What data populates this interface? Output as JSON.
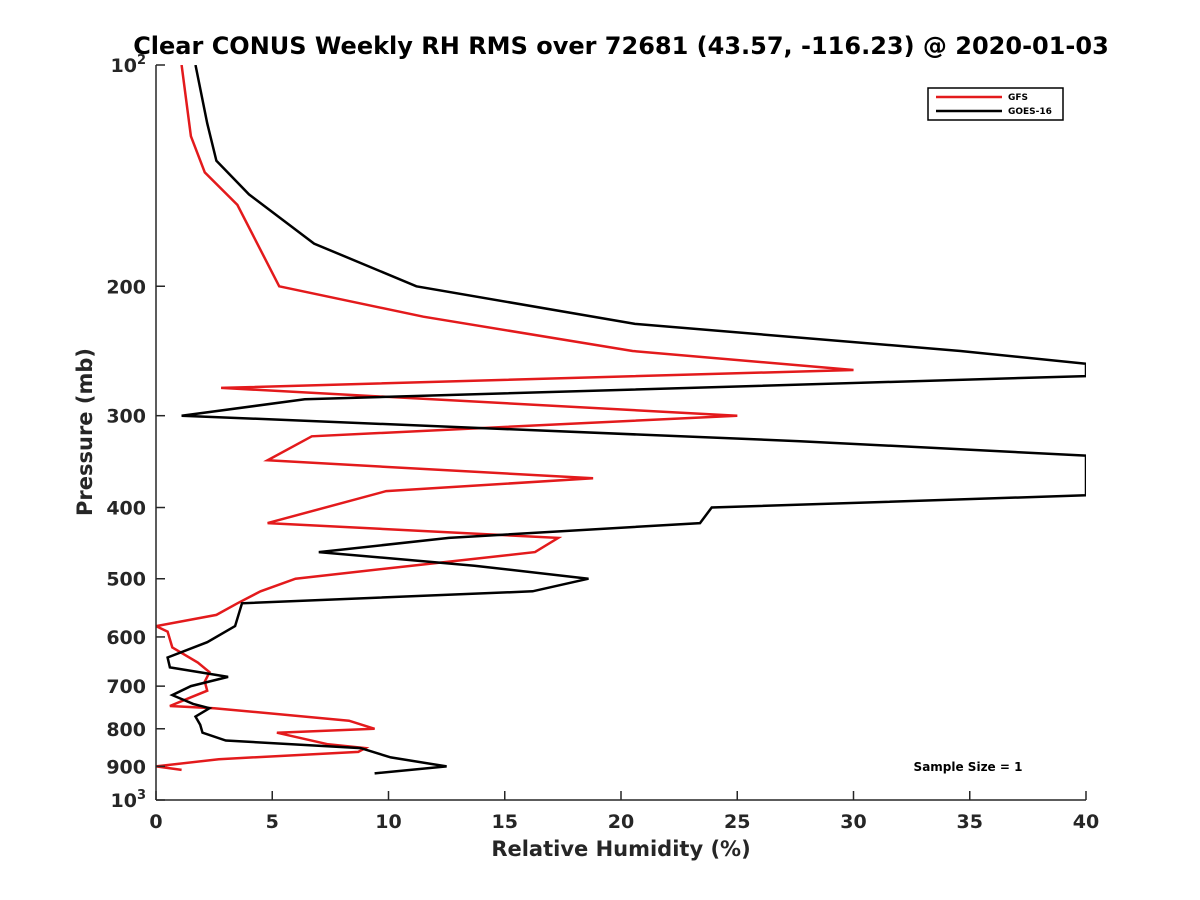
{
  "chart_data": {
    "type": "line",
    "title": "Clear CONUS Weekly RH RMS over 72681 (43.57, -116.23) @ 2020-01-03",
    "xlabel": "Relative Humidity (%)",
    "ylabel": "Pressure (mb)",
    "xlim": [
      0,
      40
    ],
    "ylim": [
      100,
      1000
    ],
    "yscale": "log",
    "y_reversed": true,
    "grid": false,
    "legend_position": "top-right",
    "x_ticks": [
      "0",
      "5",
      "10",
      "15",
      "20",
      "25",
      "30",
      "35",
      "40"
    ],
    "y_ticks": [
      {
        "value": 100,
        "base": "10",
        "exp": "2"
      },
      {
        "value": 200,
        "label": "200"
      },
      {
        "value": 300,
        "label": "300"
      },
      {
        "value": 400,
        "label": "400"
      },
      {
        "value": 500,
        "label": "500"
      },
      {
        "value": 600,
        "label": "600"
      },
      {
        "value": 700,
        "label": "700"
      },
      {
        "value": 800,
        "label": "800"
      },
      {
        "value": 900,
        "label": "900"
      },
      {
        "value": 1000,
        "base": "10",
        "exp": "3"
      }
    ],
    "annotation": "Sample Size = 1",
    "series": [
      {
        "name": "GFS",
        "color": "#e31a1c",
        "points": [
          [
            1.1,
            100
          ],
          [
            1.5,
            125
          ],
          [
            2.1,
            140
          ],
          [
            3.5,
            155
          ],
          [
            5.3,
            200
          ],
          [
            11.5,
            220
          ],
          [
            20.5,
            245
          ],
          [
            30.0,
            260
          ],
          [
            2.8,
            275
          ],
          [
            25.0,
            300
          ],
          [
            6.7,
            320
          ],
          [
            4.8,
            345
          ],
          [
            18.8,
            365
          ],
          [
            9.9,
            380
          ],
          [
            4.8,
            420
          ],
          [
            17.3,
            440
          ],
          [
            16.3,
            460
          ],
          [
            11.0,
            480
          ],
          [
            6.0,
            500
          ],
          [
            4.5,
            520
          ],
          [
            3.5,
            540
          ],
          [
            2.6,
            560
          ],
          [
            0.0,
            580
          ],
          [
            0.5,
            590
          ],
          [
            0.7,
            620
          ],
          [
            1.8,
            650
          ],
          [
            2.3,
            670
          ],
          [
            2.1,
            690
          ],
          [
            2.2,
            710
          ],
          [
            1.5,
            725
          ],
          [
            0.6,
            745
          ],
          [
            2.5,
            750
          ],
          [
            8.3,
            780
          ],
          [
            9.4,
            800
          ],
          [
            5.2,
            810
          ],
          [
            7.4,
            840
          ],
          [
            9.0,
            850
          ],
          [
            8.7,
            860
          ],
          [
            2.7,
            880
          ],
          [
            0.0,
            900
          ],
          [
            1.1,
            910
          ]
        ]
      },
      {
        "name": "GOES-16",
        "color": "#000000",
        "points": [
          [
            1.7,
            100
          ],
          [
            2.2,
            120
          ],
          [
            2.6,
            135
          ],
          [
            4.0,
            150
          ],
          [
            6.8,
            175
          ],
          [
            11.2,
            200
          ],
          [
            20.6,
            225
          ],
          [
            34.6,
            245
          ],
          [
            40.0,
            255
          ],
          [
            40.0,
            265
          ],
          [
            6.4,
            285
          ],
          [
            1.1,
            300
          ],
          [
            27.7,
            325
          ],
          [
            40.0,
            340
          ],
          [
            40.0,
            385
          ],
          [
            23.9,
            400
          ],
          [
            23.4,
            420
          ],
          [
            12.6,
            440
          ],
          [
            7.0,
            460
          ],
          [
            13.7,
            480
          ],
          [
            18.6,
            500
          ],
          [
            16.2,
            520
          ],
          [
            3.7,
            540
          ],
          [
            3.4,
            580
          ],
          [
            2.2,
            610
          ],
          [
            0.5,
            640
          ],
          [
            0.6,
            660
          ],
          [
            3.1,
            680
          ],
          [
            1.5,
            700
          ],
          [
            0.7,
            720
          ],
          [
            1.6,
            740
          ],
          [
            2.3,
            750
          ],
          [
            1.7,
            770
          ],
          [
            1.9,
            790
          ],
          [
            2.0,
            810
          ],
          [
            3.0,
            830
          ],
          [
            8.8,
            850
          ],
          [
            10.1,
            875
          ],
          [
            12.5,
            900
          ],
          [
            9.4,
            920
          ]
        ]
      }
    ]
  }
}
